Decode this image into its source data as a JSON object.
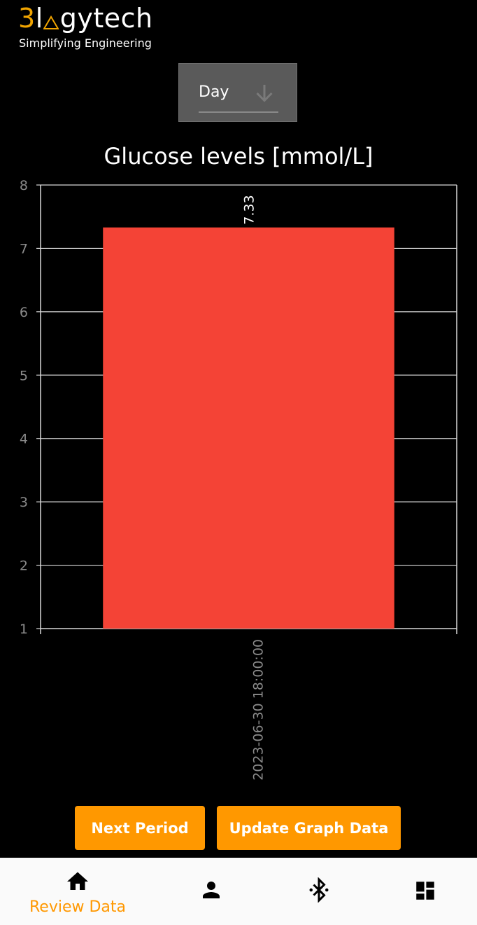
{
  "logo": {
    "part1": "3",
    "part2": "l",
    "part3": "gytech",
    "tagline": "Simplifying Engineering",
    "accent_color": "#f0a400"
  },
  "period_selector": {
    "value": "Day",
    "icon": "arrow-down-icon"
  },
  "chart_title": "Glucose levels [mmol/L]",
  "chart_data": {
    "type": "bar",
    "title": "Glucose levels [mmol/L]",
    "categories": [
      "2023-06-30 18:00:00"
    ],
    "values": [
      7.33
    ],
    "data_labels": [
      "7.33"
    ],
    "ylim": [
      1,
      8
    ],
    "yticks": [
      "1",
      "2",
      "3",
      "4",
      "5",
      "6",
      "7",
      "8"
    ],
    "grid": true,
    "bar_color": "#f44336"
  },
  "buttons": {
    "next_period": "Next Period",
    "update_graph": "Update Graph Data",
    "color": "#ff9800"
  },
  "bottom_nav": {
    "items": [
      {
        "label": "Review Data",
        "icon": "home-icon",
        "active": true
      },
      {
        "label": "",
        "icon": "person-icon",
        "active": false
      },
      {
        "label": "",
        "icon": "bluetooth-icon",
        "active": false
      },
      {
        "label": "",
        "icon": "dashboard-icon",
        "active": false
      }
    ],
    "active_color": "#ff9800"
  }
}
